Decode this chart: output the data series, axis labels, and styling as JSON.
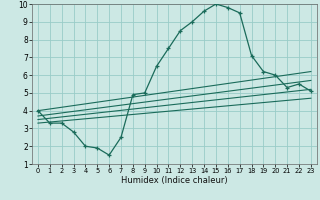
{
  "title": "",
  "xlabel": "Humidex (Indice chaleur)",
  "bg_color": "#cce8e4",
  "grid_color": "#99ccc8",
  "line_color": "#1a6b5a",
  "xlim": [
    -0.5,
    23.5
  ],
  "ylim": [
    1,
    10
  ],
  "xticks": [
    0,
    1,
    2,
    3,
    4,
    5,
    6,
    7,
    8,
    9,
    10,
    11,
    12,
    13,
    14,
    15,
    16,
    17,
    18,
    19,
    20,
    21,
    22,
    23
  ],
  "yticks": [
    1,
    2,
    3,
    4,
    5,
    6,
    7,
    8,
    9,
    10
  ],
  "line1_x": [
    0,
    1,
    2,
    3,
    4,
    5,
    6,
    7,
    8,
    9,
    10,
    11,
    12,
    13,
    14,
    15,
    16,
    17,
    18,
    19,
    20,
    21,
    22,
    23
  ],
  "line1_y": [
    4.0,
    3.3,
    3.3,
    2.8,
    2.0,
    1.9,
    1.5,
    2.5,
    4.9,
    5.0,
    6.5,
    7.5,
    8.5,
    9.0,
    9.6,
    10.0,
    9.8,
    9.5,
    7.1,
    6.2,
    6.0,
    5.3,
    5.5,
    5.1
  ],
  "line2_x": [
    0,
    23
  ],
  "line2_y": [
    3.3,
    4.7
  ],
  "line3_x": [
    0,
    23
  ],
  "line3_y": [
    3.5,
    5.2
  ],
  "line4_x": [
    0,
    23
  ],
  "line4_y": [
    3.7,
    5.7
  ],
  "line5_x": [
    0,
    23
  ],
  "line5_y": [
    4.0,
    6.2
  ]
}
